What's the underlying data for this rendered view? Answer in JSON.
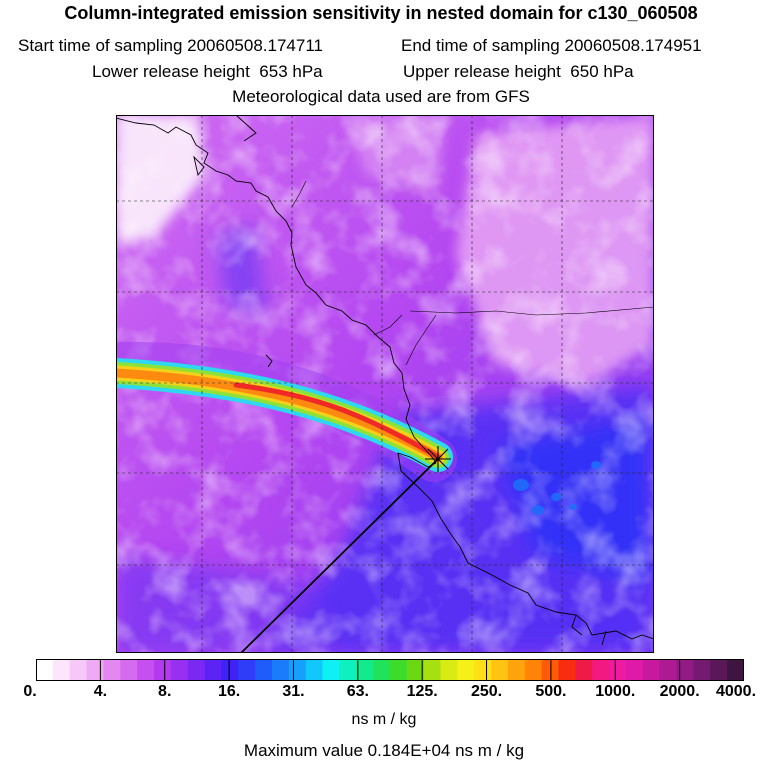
{
  "title": "Column-integrated emission sensitivity in nested domain for c130_060508",
  "start_label": "Start time of sampling",
  "start_value": "20060508.174711",
  "end_label": "End time of sampling",
  "end_value": "20060508.174951",
  "lower_label": "Lower release height",
  "lower_value": "653 hPa",
  "upper_label": "Upper release height",
  "upper_value": "650 hPa",
  "met_line": "Meteorological data used are from GFS",
  "colorbar": {
    "ticks": [
      "0.",
      "4.",
      "8.",
      "16.",
      "31.",
      "63.",
      "125.",
      "250.",
      "500.",
      "1000.",
      "2000.",
      "4000."
    ],
    "colors": [
      "#ffffff",
      "#fbe6fb",
      "#f5c8f7",
      "#eeaaf4",
      "#e388f1",
      "#d56bef",
      "#c550ef",
      "#b23bef",
      "#9730f0",
      "#7a28f2",
      "#5c24f4",
      "#4022f6",
      "#2f3cf8",
      "#205cf9",
      "#1a7cfa",
      "#16a0fb",
      "#12c8fb",
      "#0ff0f2",
      "#0ff0c0",
      "#13ea8c",
      "#20e35a",
      "#3ddc2a",
      "#6cd814",
      "#a6e010",
      "#d8ec14",
      "#f4f018",
      "#ffe018",
      "#ffc312",
      "#ffa40c",
      "#ff8408",
      "#ff5a08",
      "#f82c10",
      "#f01a48",
      "#f21a80",
      "#ee1aa0",
      "#e01aa8",
      "#c8189e",
      "#ae1a92",
      "#921a84",
      "#741a70",
      "#5a1858",
      "#3e1440"
    ],
    "units": "ns m / kg"
  },
  "max_value_text": "Maximum value  0.184E+04 ns m / kg",
  "map": {
    "grid": "on",
    "release_marker": "cross"
  }
}
